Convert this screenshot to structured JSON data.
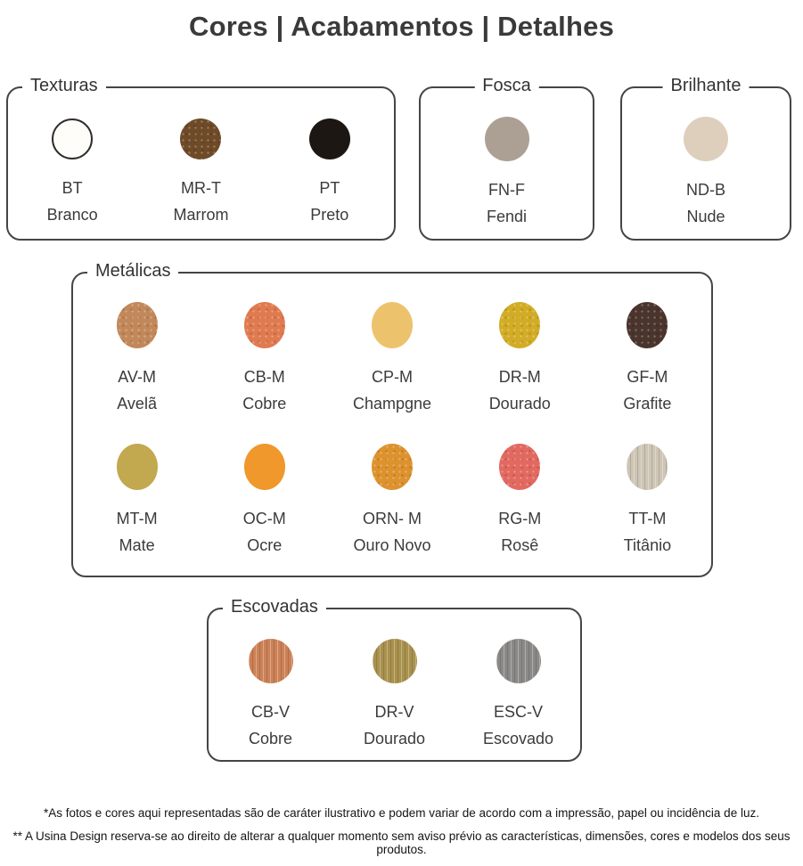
{
  "title": "Cores | Acabamentos | Detalhes",
  "texturas": {
    "label": "Texturas",
    "items": [
      {
        "code": "BT",
        "name": "Branco",
        "color": "#fffdf9"
      },
      {
        "code": "MR-T",
        "name": "Marrom",
        "color": "#6e4a27"
      },
      {
        "code": "PT",
        "name": "Preto",
        "color": "#1c1712"
      }
    ]
  },
  "fosca": {
    "label": "Fosca",
    "items": [
      {
        "code": "FN-F",
        "name": "Fendi",
        "color": "#aca095"
      }
    ]
  },
  "brilhante": {
    "label": "Brilhante",
    "items": [
      {
        "code": "ND-B",
        "name": "Nude",
        "color": "#ddcfbb"
      }
    ]
  },
  "metalicas": {
    "label": "Metálicas",
    "row1": [
      {
        "code": "AV-M",
        "name": "Avelã",
        "color": "#c2885a"
      },
      {
        "code": "CB-M",
        "name": "Cobre",
        "color": "#e07a4f"
      },
      {
        "code": "CP-M",
        "name": "Champgne",
        "color": "#edc26c"
      },
      {
        "code": "DR-M",
        "name": "Dourado",
        "color": "#d2ac25"
      },
      {
        "code": "GF-M",
        "name": "Grafite",
        "color": "#4a342c"
      }
    ],
    "row2": [
      {
        "code": "MT-M",
        "name": "Mate",
        "color": "#c2a84e"
      },
      {
        "code": "OC-M",
        "name": "Ocre",
        "color": "#f0982b"
      },
      {
        "code": "ORN- M",
        "name": "Ouro Novo",
        "color": "#dd922d"
      },
      {
        "code": "RG-M",
        "name": "Rosê",
        "color": "#e26960"
      },
      {
        "code": "TT-M",
        "name": "Titânio",
        "color": "#cec5b5"
      }
    ]
  },
  "escovadas": {
    "label": "Escovadas",
    "items": [
      {
        "code": "CB-V",
        "name": "Cobre",
        "color": "#cc8156"
      },
      {
        "code": "DR-V",
        "name": "Dourado",
        "color": "#a9914e"
      },
      {
        "code": "ESC-V",
        "name": "Escovado",
        "color": "#8b8888"
      }
    ]
  },
  "footnotes": {
    "line1": "*As fotos e cores aqui representadas são de caráter ilustrativo e podem variar de acordo com a impressão, papel ou incidência de luz.",
    "line2": "** A Usina Design reserva-se ao direito de alterar a qualquer momento sem aviso prévio as características, dimensões, cores e modelos dos seus produtos."
  }
}
